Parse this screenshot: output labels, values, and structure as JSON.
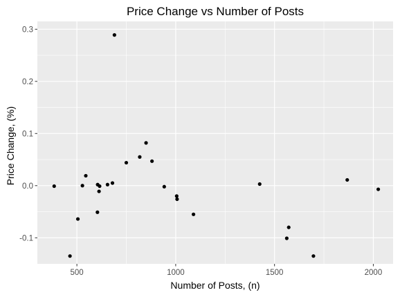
{
  "chart_data": {
    "type": "scatter",
    "title": "Price Change vs Number of Posts",
    "xlabel": "Number of Posts, (n)",
    "ylabel": "Price Change, (%)",
    "xlim": [
      300,
      2100
    ],
    "ylim": [
      -0.15,
      0.315
    ],
    "x_ticks": [
      500,
      1000,
      1500,
      2000
    ],
    "x_tick_labels": [
      "500",
      "1000",
      "1500",
      "2000"
    ],
    "y_ticks": [
      -0.1,
      0.0,
      0.1,
      0.2,
      0.3
    ],
    "y_tick_labels": [
      "-0.1",
      "0.0",
      "0.1",
      "0.2",
      "0.3"
    ],
    "grid": true,
    "colors": {
      "panel": "#ebebeb",
      "grid_major": "#ffffff",
      "point": "#000000",
      "tick": "#333333"
    },
    "series": [
      {
        "points": [
          {
            "x": 385,
            "y": -0.001
          },
          {
            "x": 465,
            "y": -0.135
          },
          {
            "x": 505,
            "y": -0.064
          },
          {
            "x": 528,
            "y": 0.0
          },
          {
            "x": 545,
            "y": 0.019
          },
          {
            "x": 604,
            "y": -0.051
          },
          {
            "x": 605,
            "y": 0.002
          },
          {
            "x": 612,
            "y": -0.011
          },
          {
            "x": 615,
            "y": -0.001
          },
          {
            "x": 655,
            "y": 0.002
          },
          {
            "x": 680,
            "y": 0.005
          },
          {
            "x": 690,
            "y": 0.289
          },
          {
            "x": 750,
            "y": 0.044
          },
          {
            "x": 818,
            "y": 0.055
          },
          {
            "x": 850,
            "y": 0.082
          },
          {
            "x": 880,
            "y": 0.047
          },
          {
            "x": 942,
            "y": -0.002
          },
          {
            "x": 1005,
            "y": -0.02
          },
          {
            "x": 1007,
            "y": -0.026
          },
          {
            "x": 1090,
            "y": -0.055
          },
          {
            "x": 1425,
            "y": 0.003
          },
          {
            "x": 1562,
            "y": -0.101
          },
          {
            "x": 1572,
            "y": -0.08
          },
          {
            "x": 1697,
            "y": -0.135
          },
          {
            "x": 1868,
            "y": 0.011
          },
          {
            "x": 2025,
            "y": -0.007
          }
        ]
      }
    ]
  }
}
